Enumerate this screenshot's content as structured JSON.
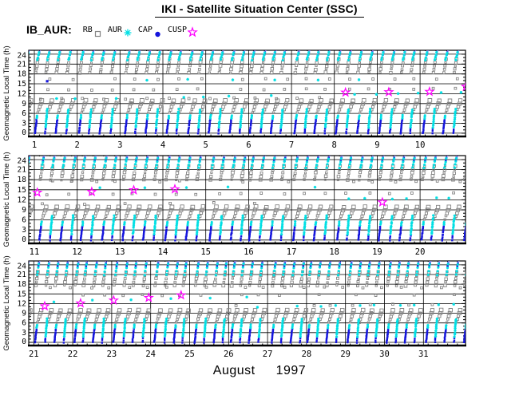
{
  "chart_data": {
    "type": "scatter",
    "title": "IKI - Satellite Situation Center (SSC)",
    "dataset_label": "IB_AUR:",
    "xlabel": "August 1997",
    "month": "August",
    "year": "1997",
    "ylabel": "Geomagnetic Local Time (h)",
    "ylim": [
      0,
      24
    ],
    "yticks": [
      0,
      3,
      6,
      9,
      12,
      15,
      18,
      21,
      24
    ],
    "grid": "on",
    "legend_position": "top-left",
    "series": [
      {
        "name": "RB",
        "marker": "open-square",
        "color": "#848484"
      },
      {
        "name": "AUR",
        "marker": "asterisk",
        "color": "#00dfe4"
      },
      {
        "name": "CAP",
        "marker": "filled-circle",
        "color": "#1515dc"
      },
      {
        "name": "CUSP",
        "marker": "open-star",
        "color": "#ff00ff"
      }
    ],
    "panels": [
      {
        "label": "days 1-10",
        "first_day": 1,
        "tick_days": [
          1,
          2,
          3,
          4,
          5,
          6,
          7,
          8,
          9,
          10
        ],
        "days_span": 10.19
      },
      {
        "label": "days 11-20",
        "first_day": 11,
        "tick_days": [
          11,
          12,
          13,
          14,
          15,
          16,
          17,
          18,
          19,
          20
        ],
        "days_span": 10.19
      },
      {
        "label": "days 21-31",
        "first_day": 21,
        "tick_days": [
          21,
          22,
          23,
          24,
          25,
          26,
          27,
          28,
          29,
          30,
          31
        ],
        "days_span": 11.21
      }
    ],
    "cusp_points": [
      {
        "day": 8.26,
        "mlt": 12.4
      },
      {
        "day": 9.27,
        "mlt": 12.5
      },
      {
        "day": 10.22,
        "mlt": 12.6
      },
      {
        "day": 11.07,
        "mlt": 14.2
      },
      {
        "day": 12.34,
        "mlt": 14.4
      },
      {
        "day": 13.32,
        "mlt": 14.9
      },
      {
        "day": 14.28,
        "mlt": 15.2
      },
      {
        "day": 19.12,
        "mlt": 11.3
      },
      {
        "day": 21.28,
        "mlt": 11.2
      },
      {
        "day": 22.2,
        "mlt": 12.1
      },
      {
        "day": 23.05,
        "mlt": 13.0
      },
      {
        "day": 23.95,
        "mlt": 13.8
      },
      {
        "day": 24.78,
        "mlt": 14.6
      }
    ],
    "pattern": {
      "orbits_per_day": 4,
      "orbit_spacing_days": 0.242,
      "bottom_streak": {
        "cap_mlt": [
          0,
          5.4
        ],
        "aur_mlt": [
          0,
          7.2
        ],
        "slant_days": 0.05,
        "points": 13
      },
      "rb_arc": {
        "mlt": [
          6.2,
          9.9
        ],
        "slant_days": 0.095,
        "points": 5
      },
      "top_columns": [
        {
          "panel": 1,
          "rb_mlt": [
            18.4,
            22.5
          ],
          "aur_mlt": [
            22.3,
            24.5
          ],
          "cap_mlt": [
            23.8,
            25.4
          ]
        },
        {
          "panel": 2,
          "rb_mlt": [
            18.0,
            22.1
          ],
          "aur_mlt": [
            21.6,
            24.3
          ],
          "cap_mlt": [
            23.7,
            25.4
          ]
        },
        {
          "panel": 3,
          "rb_mlt": [
            17.6,
            21.8
          ],
          "aur_mlt": [
            20.9,
            24.2
          ],
          "cap_mlt": [
            23.6,
            25.4
          ]
        }
      ],
      "sparse_rows": [
        {
          "panel": 1,
          "series": "RB",
          "mlt": 13.2,
          "drift_per_day": 0.03,
          "phases": [
            0.32,
            0.82
          ]
        },
        {
          "panel": 1,
          "series": "RB",
          "mlt": 16.4,
          "drift_per_day": 0.0,
          "phases": [
            0.38,
            0.88
          ]
        },
        {
          "panel": 1,
          "series": "RB",
          "mlt": 10.35,
          "drift_per_day": 0.06,
          "phases": [
            0.12,
            0.62
          ],
          "days": [
            1,
            7
          ]
        },
        {
          "panel": 1,
          "series": "AUR",
          "mlt": 10.4,
          "drift_per_day": 0.21,
          "phases": [
            0.5,
            0.95
          ]
        },
        {
          "panel": 1,
          "series": "CAP",
          "mlt": 15.85,
          "drift_per_day": 0.0,
          "phases": [
            0.3
          ],
          "days": [
            1,
            2
          ]
        },
        {
          "panel": 1,
          "series": "AUR",
          "mlt": 16.2,
          "drift_per_day": 0.0,
          "phases": [
            0.6
          ],
          "days": [
            2,
            8
          ]
        },
        {
          "panel": 2,
          "series": "RB",
          "mlt": 13.6,
          "drift_per_day": 0.05,
          "phases": [
            0.3,
            0.8
          ]
        },
        {
          "panel": 2,
          "series": "RB",
          "mlt": 17.5,
          "drift_per_day": 0.0,
          "phases": [
            0.42,
            0.9
          ]
        },
        {
          "panel": 2,
          "series": "AUR",
          "mlt": 15.7,
          "drift_per_day": 0.0,
          "phases": [
            0.55
          ],
          "days": [
            11,
            17
          ]
        },
        {
          "panel": 2,
          "series": "AUR",
          "mlt": 11.6,
          "drift_per_day": 0.1,
          "phases": [
            0.35,
            0.7
          ],
          "days": [
            18,
            21
          ]
        },
        {
          "panel": 2,
          "series": "RB",
          "mlt": 10.8,
          "drift_per_day": 0.05,
          "phases": [
            0.15
          ],
          "days": [
            11,
            16
          ]
        },
        {
          "panel": 3,
          "series": "RB",
          "mlt": 14.6,
          "drift_per_day": 0.0,
          "phases": [
            0.3,
            0.78
          ]
        },
        {
          "panel": 3,
          "series": "RB",
          "mlt": 17.0,
          "drift_per_day": 0.0,
          "phases": [
            0.45,
            0.92
          ]
        },
        {
          "panel": 3,
          "series": "AUR",
          "mlt": 12.6,
          "drift_per_day": 0.3,
          "phases": [
            0.5
          ],
          "days": [
            21,
            26
          ]
        },
        {
          "panel": 3,
          "series": "AUR",
          "mlt": 10.2,
          "drift_per_day": 0.15,
          "phases": [
            0.4,
            0.75
          ],
          "days": [
            26,
            32
          ]
        },
        {
          "panel": 3,
          "series": "RB",
          "mlt": 10.8,
          "drift_per_day": 0.1,
          "phases": [
            0.2,
            0.6
          ],
          "days": [
            26,
            32
          ]
        }
      ]
    }
  }
}
